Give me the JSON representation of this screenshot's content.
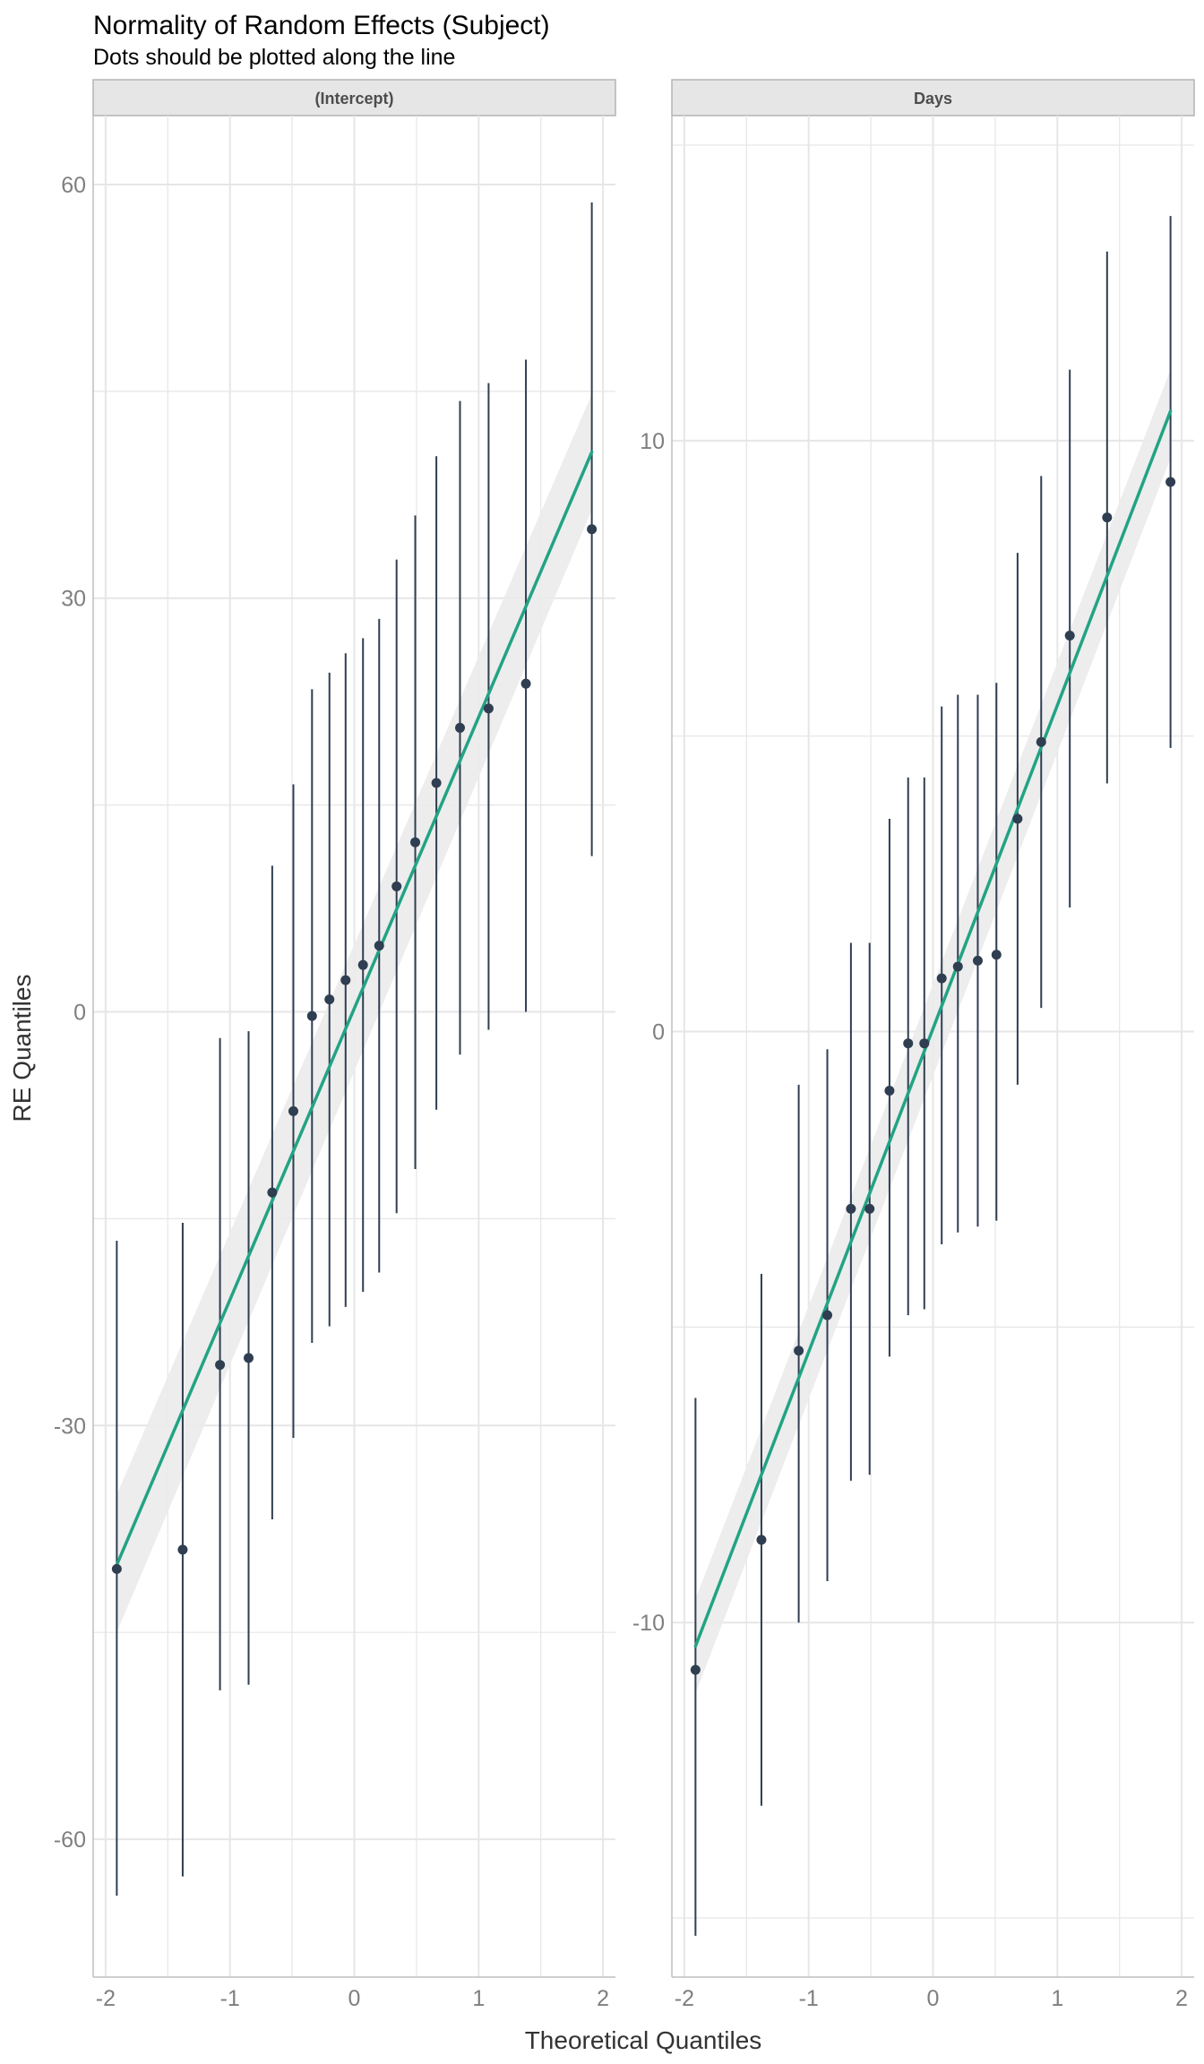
{
  "title": "Normality of Random Effects (Subject)",
  "subtitle": "Dots should be plotted along the line",
  "xlabel": "Theoretical Quantiles",
  "ylabel": "RE Quantiles",
  "colors": {
    "point": "#2f3e51",
    "line": "#22a384",
    "band": "#ebebeb",
    "grid": "#e6e6e6",
    "strip_fill": "#e6e6e6",
    "strip_border": "#b3b3b3",
    "axis_text": "#7f7f7f"
  },
  "chart_data": [
    {
      "type": "scatter",
      "panel": "(Intercept)",
      "xlim": [
        -2.1,
        2.1
      ],
      "ylim": [
        -70,
        65
      ],
      "x_ticks": [
        -2,
        -1,
        0,
        1,
        2
      ],
      "x_tick_labels": [
        "-2",
        "-1",
        "0",
        "1",
        "2"
      ],
      "x_minor": [
        -1.5,
        -0.5,
        0.5,
        1.5
      ],
      "y_ticks": [
        -60,
        -30,
        0,
        30,
        60
      ],
      "y_tick_labels": [
        "-60",
        "-30",
        "0",
        "30",
        "60"
      ],
      "y_minor": [
        -45,
        -15,
        15,
        45
      ],
      "fit_line": {
        "x": [
          -1.91,
          1.91
        ],
        "y": [
          -40.1,
          40.6
        ]
      },
      "band": {
        "x": [
          -1.91,
          1.91
        ],
        "lower": [
          -45,
          36.4
        ],
        "upper": [
          -35,
          44.8
        ]
      },
      "points": [
        {
          "x": -1.91,
          "y": -40.4,
          "lo": -64.1,
          "hi": -16.6
        },
        {
          "x": -1.38,
          "y": -39.0,
          "lo": -62.7,
          "hi": -15.3
        },
        {
          "x": -1.08,
          "y": -25.6,
          "lo": -49.2,
          "hi": -1.9
        },
        {
          "x": -0.85,
          "y": -25.1,
          "lo": -48.8,
          "hi": -1.4
        },
        {
          "x": -0.66,
          "y": -13.1,
          "lo": -36.8,
          "hi": 10.6
        },
        {
          "x": -0.49,
          "y": -7.2,
          "lo": -30.9,
          "hi": 16.5
        },
        {
          "x": -0.34,
          "y": -0.3,
          "lo": -24.0,
          "hi": 23.4
        },
        {
          "x": -0.2,
          "y": 0.9,
          "lo": -22.8,
          "hi": 24.6
        },
        {
          "x": -0.07,
          "y": 2.3,
          "lo": -21.4,
          "hi": 26.0
        },
        {
          "x": 0.07,
          "y": 3.4,
          "lo": -20.3,
          "hi": 27.1
        },
        {
          "x": 0.2,
          "y": 4.8,
          "lo": -18.9,
          "hi": 28.5
        },
        {
          "x": 0.34,
          "y": 9.1,
          "lo": -14.6,
          "hi": 32.8
        },
        {
          "x": 0.49,
          "y": 12.3,
          "lo": -11.4,
          "hi": 36.0
        },
        {
          "x": 0.66,
          "y": 16.6,
          "lo": -7.1,
          "hi": 40.3
        },
        {
          "x": 0.85,
          "y": 20.6,
          "lo": -3.1,
          "hi": 44.3
        },
        {
          "x": 1.08,
          "y": 22.0,
          "lo": -1.3,
          "hi": 45.6
        },
        {
          "x": 1.38,
          "y": 23.8,
          "lo": 0.0,
          "hi": 47.3
        },
        {
          "x": 1.91,
          "y": 35.0,
          "lo": 11.3,
          "hi": 58.7
        }
      ]
    },
    {
      "type": "scatter",
      "panel": "Days",
      "xlim": [
        -2.1,
        2.1
      ],
      "ylim": [
        -16,
        15.5
      ],
      "x_ticks": [
        -2,
        -1,
        0,
        1,
        2
      ],
      "x_tick_labels": [
        "-2",
        "-1",
        "0",
        "1",
        "2"
      ],
      "x_minor": [
        -1.5,
        -0.5,
        0.5,
        1.5
      ],
      "y_ticks": [
        -10,
        0,
        10
      ],
      "y_tick_labels": [
        "-10",
        "0",
        "10"
      ],
      "y_minor": [
        -15,
        -5,
        5,
        15
      ],
      "fit_line": {
        "x": [
          -1.91,
          1.91
        ],
        "y": [
          -10.4,
          10.5
        ]
      },
      "band": {
        "x": [
          -1.91,
          1.91
        ],
        "lower": [
          -11.2,
          9.7
        ],
        "upper": [
          -9.6,
          11.2
        ]
      },
      "points": [
        {
          "x": -1.91,
          "y": -10.8,
          "lo": -15.3,
          "hi": -6.2
        },
        {
          "x": -1.38,
          "y": -8.6,
          "lo": -13.1,
          "hi": -4.1
        },
        {
          "x": -1.08,
          "y": -5.4,
          "lo": -10.0,
          "hi": -0.9
        },
        {
          "x": -0.85,
          "y": -4.8,
          "lo": -9.3,
          "hi": -0.3
        },
        {
          "x": -0.66,
          "y": -3.0,
          "lo": -7.6,
          "hi": 1.5
        },
        {
          "x": -0.51,
          "y": -3.0,
          "lo": -7.5,
          "hi": 1.5
        },
        {
          "x": -0.35,
          "y": -1.0,
          "lo": -5.5,
          "hi": 3.6
        },
        {
          "x": -0.2,
          "y": -0.2,
          "lo": -4.8,
          "hi": 4.3
        },
        {
          "x": -0.07,
          "y": -0.2,
          "lo": -4.7,
          "hi": 4.3
        },
        {
          "x": 0.07,
          "y": 0.9,
          "lo": -3.6,
          "hi": 5.5
        },
        {
          "x": 0.2,
          "y": 1.1,
          "lo": -3.4,
          "hi": 5.7
        },
        {
          "x": 0.36,
          "y": 1.2,
          "lo": -3.3,
          "hi": 5.7
        },
        {
          "x": 0.51,
          "y": 1.3,
          "lo": -3.2,
          "hi": 5.9
        },
        {
          "x": 0.68,
          "y": 3.6,
          "lo": -0.9,
          "hi": 8.1
        },
        {
          "x": 0.87,
          "y": 4.9,
          "lo": 0.4,
          "hi": 9.4
        },
        {
          "x": 1.1,
          "y": 6.7,
          "lo": 2.1,
          "hi": 11.2
        },
        {
          "x": 1.4,
          "y": 8.7,
          "lo": 4.2,
          "hi": 13.2
        },
        {
          "x": 1.91,
          "y": 9.3,
          "lo": 4.8,
          "hi": 13.8
        }
      ]
    }
  ]
}
